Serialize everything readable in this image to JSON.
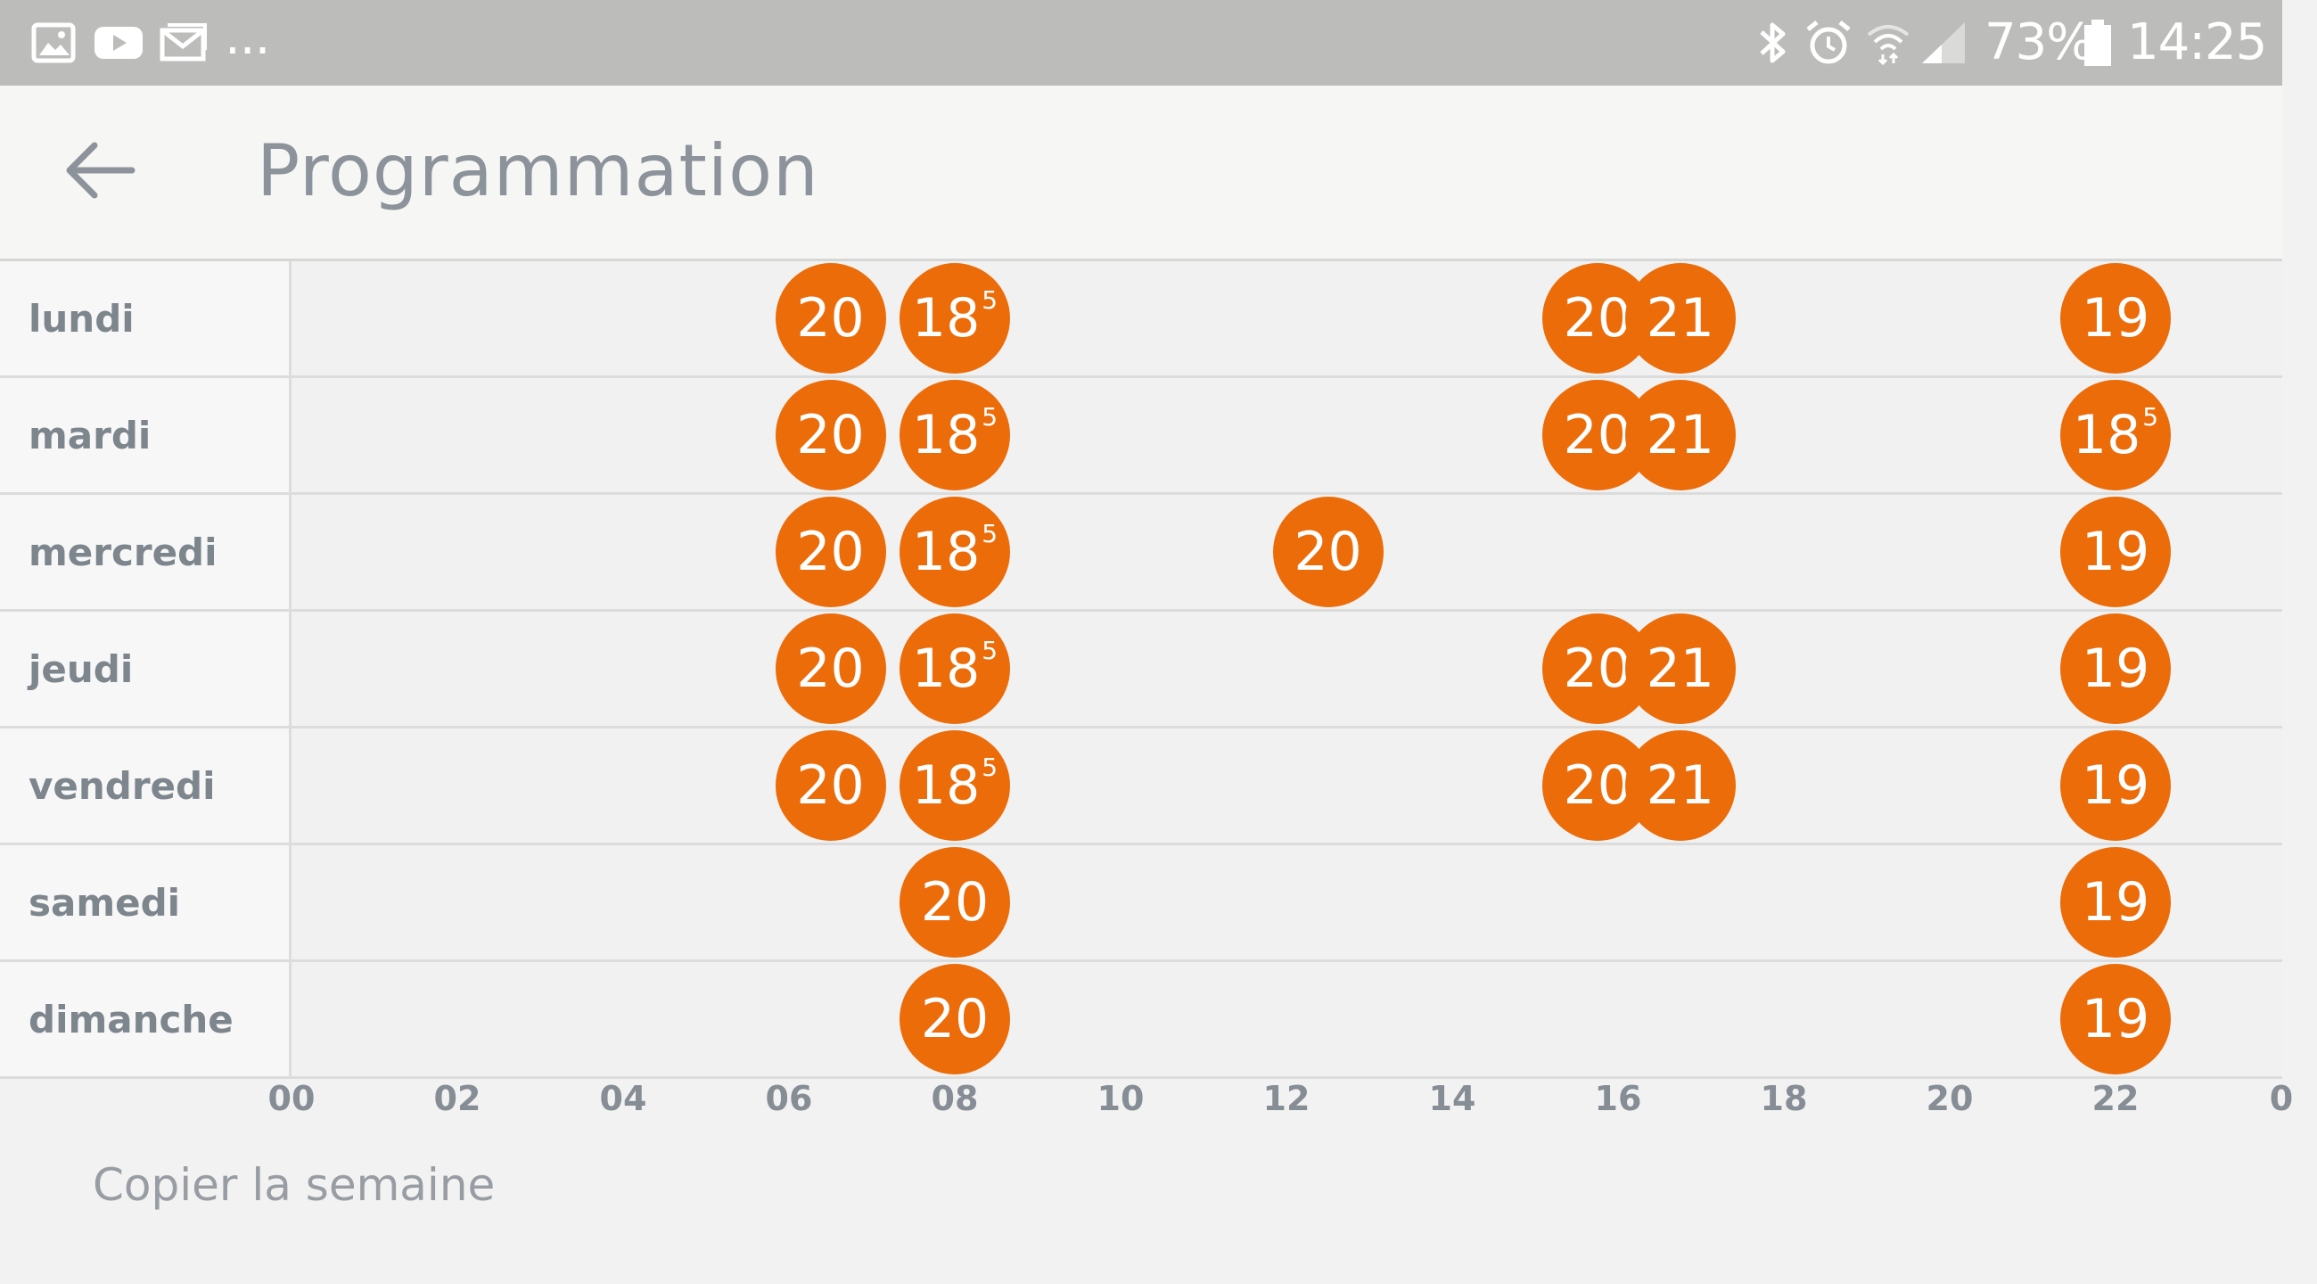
{
  "status_bar": {
    "left_icons": [
      "gallery-icon",
      "youtube-icon",
      "mail-icon"
    ],
    "more": "...",
    "right_icons": [
      "bluetooth-icon",
      "alarm-icon",
      "wifi-icon",
      "signal-icon"
    ],
    "battery": "73%",
    "time": "14:25"
  },
  "app_bar": {
    "title": "Programmation",
    "back_icon": "arrow-left-icon"
  },
  "colors": {
    "accent": "#ec6c0a",
    "status_bar": "#bcbcba",
    "label_text": "#7d858d"
  },
  "schedule": {
    "days": [
      {
        "label": "lundi",
        "events": [
          {
            "hour": 6.5,
            "value": "20",
            "sup": ""
          },
          {
            "hour": 8.0,
            "value": "18",
            "sup": "5"
          },
          {
            "hour": 15.75,
            "value": "20",
            "sup": ""
          },
          {
            "hour": 16.75,
            "value": "21",
            "sup": ""
          },
          {
            "hour": 22.0,
            "value": "19",
            "sup": ""
          }
        ]
      },
      {
        "label": "mardi",
        "events": [
          {
            "hour": 6.5,
            "value": "20",
            "sup": ""
          },
          {
            "hour": 8.0,
            "value": "18",
            "sup": "5"
          },
          {
            "hour": 15.75,
            "value": "20",
            "sup": ""
          },
          {
            "hour": 16.75,
            "value": "21",
            "sup": ""
          },
          {
            "hour": 22.0,
            "value": "18",
            "sup": "5"
          }
        ]
      },
      {
        "label": "mercredi",
        "events": [
          {
            "hour": 6.5,
            "value": "20",
            "sup": ""
          },
          {
            "hour": 8.0,
            "value": "18",
            "sup": "5"
          },
          {
            "hour": 12.5,
            "value": "20",
            "sup": ""
          },
          {
            "hour": 22.0,
            "value": "19",
            "sup": ""
          }
        ]
      },
      {
        "label": "jeudi",
        "events": [
          {
            "hour": 6.5,
            "value": "20",
            "sup": ""
          },
          {
            "hour": 8.0,
            "value": "18",
            "sup": "5"
          },
          {
            "hour": 15.75,
            "value": "20",
            "sup": ""
          },
          {
            "hour": 16.75,
            "value": "21",
            "sup": ""
          },
          {
            "hour": 22.0,
            "value": "19",
            "sup": ""
          }
        ]
      },
      {
        "label": "vendredi",
        "events": [
          {
            "hour": 6.5,
            "value": "20",
            "sup": ""
          },
          {
            "hour": 8.0,
            "value": "18",
            "sup": "5"
          },
          {
            "hour": 15.75,
            "value": "20",
            "sup": ""
          },
          {
            "hour": 16.75,
            "value": "21",
            "sup": ""
          },
          {
            "hour": 22.0,
            "value": "19",
            "sup": ""
          }
        ]
      },
      {
        "label": "samedi",
        "events": [
          {
            "hour": 8.0,
            "value": "20",
            "sup": ""
          },
          {
            "hour": 22.0,
            "value": "19",
            "sup": ""
          }
        ]
      },
      {
        "label": "dimanche",
        "events": [
          {
            "hour": 8.0,
            "value": "20",
            "sup": ""
          },
          {
            "hour": 22.0,
            "value": "19",
            "sup": ""
          }
        ]
      }
    ],
    "axis_ticks": [
      "00",
      "02",
      "04",
      "06",
      "08",
      "10",
      "12",
      "14",
      "16",
      "18",
      "20",
      "22",
      "0"
    ]
  },
  "footer": {
    "copy_week_label": "Copier la semaine"
  }
}
